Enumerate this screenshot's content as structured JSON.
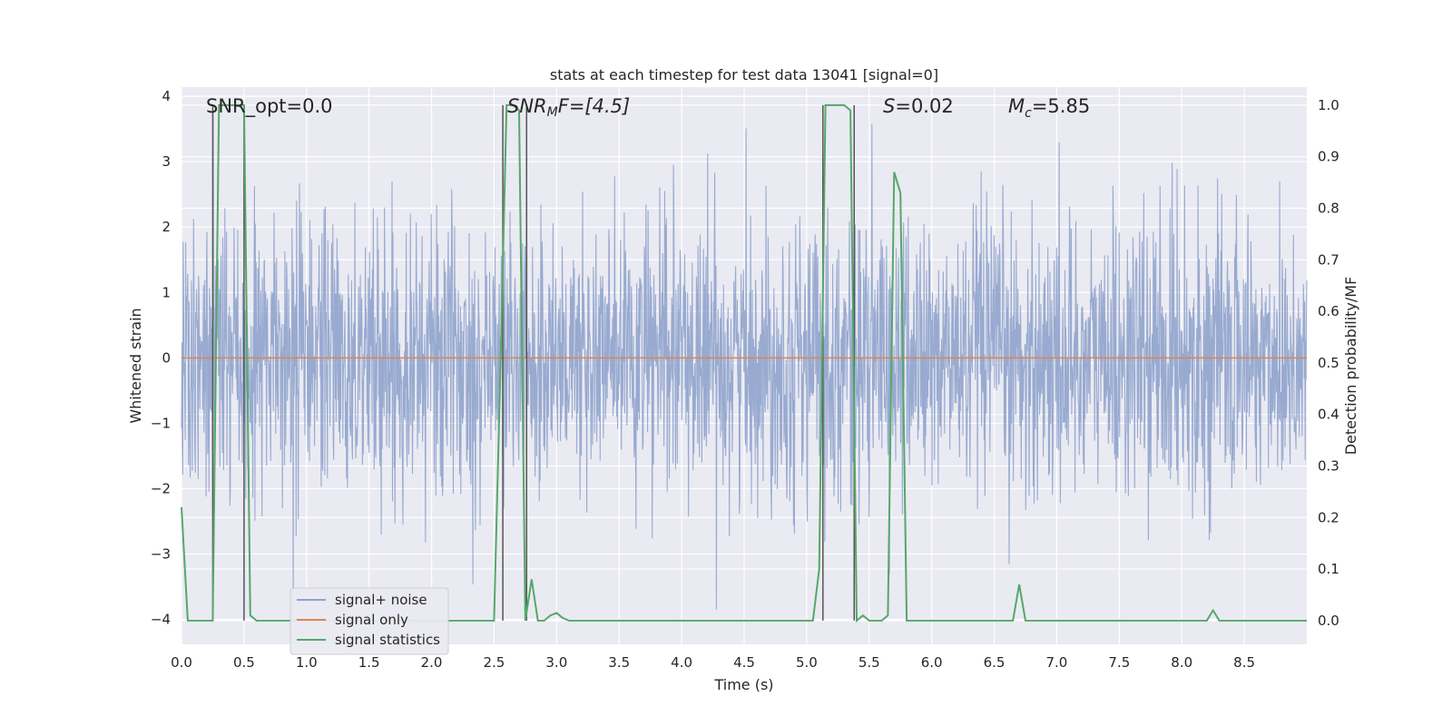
{
  "chart_data": {
    "type": "line",
    "title": "stats at each timestep for test data 13041 [signal=0]",
    "xlabel": "Time (s)",
    "ylabel_left": "Whitened strain",
    "ylabel_right": "Detection probability/MF",
    "xlim": [
      0.0,
      9.0
    ],
    "ylim_left": [
      -4.38,
      4.14
    ],
    "ylim_right": [
      -0.046,
      1.035
    ],
    "x_ticks": [
      "0.0",
      "0.5",
      "1.0",
      "1.5",
      "2.0",
      "2.5",
      "3.0",
      "3.5",
      "4.0",
      "4.5",
      "5.0",
      "5.5",
      "6.0",
      "6.5",
      "7.0",
      "7.5",
      "8.0",
      "8.5"
    ],
    "y_ticks_left": [
      "−4",
      "−3",
      "−2",
      "−1",
      "0",
      "1",
      "2",
      "3",
      "4"
    ],
    "y_ticks_right": [
      "0.0",
      "0.1",
      "0.2",
      "0.3",
      "0.4",
      "0.5",
      "0.6",
      "0.7",
      "0.8",
      "0.9",
      "1.0"
    ],
    "annotations": {
      "snr_opt": "SNR_opt=0.0",
      "snr_mf_sym": "SNR",
      "snr_mf_sub": "M",
      "snr_mf_rest": "F=[4.5]",
      "s_sym": "S",
      "s_rest": "=0.02",
      "mc_sym": "M",
      "mc_sub": "c",
      "mc_rest": "=5.85"
    },
    "vertical_lines": [
      0.25,
      0.5,
      2.57,
      2.76,
      5.13,
      5.38
    ],
    "legend": [
      {
        "label": "signal+ noise",
        "color": "#8fa3cc"
      },
      {
        "label": "signal only",
        "color": "#dd8452"
      },
      {
        "label": "signal statistics",
        "color": "#55a868"
      }
    ],
    "series": [
      {
        "name": "signal+ noise",
        "axis": "left",
        "description": "whitened noise strain, roughly +/-1.7 with spikes to +/-3.5"
      },
      {
        "name": "signal only",
        "axis": "left",
        "values": [
          0.0
        ]
      },
      {
        "name": "signal statistics",
        "axis": "right",
        "x": [
          0.0,
          0.05,
          0.1,
          0.15,
          0.2,
          0.25,
          0.3,
          0.35,
          0.4,
          0.45,
          0.5,
          0.55,
          0.6,
          0.7,
          0.8,
          0.9,
          1.0,
          1.5,
          2.0,
          2.4,
          2.5,
          2.55,
          2.6,
          2.65,
          2.7,
          2.75,
          2.8,
          2.85,
          2.9,
          2.95,
          3.0,
          3.05,
          3.1,
          3.2,
          3.5,
          4.0,
          4.5,
          5.0,
          5.05,
          5.1,
          5.15,
          5.2,
          5.25,
          5.3,
          5.35,
          5.4,
          5.45,
          5.5,
          5.55,
          5.6,
          5.65,
          5.7,
          5.75,
          5.8,
          5.85,
          5.9,
          5.95,
          6.0,
          6.5,
          6.65,
          6.7,
          6.75,
          6.8,
          6.85,
          7.0,
          7.5,
          8.0,
          8.2,
          8.25,
          8.3,
          8.35,
          8.4,
          8.5,
          9.0
        ],
        "values": [
          0.22,
          0.0,
          0.0,
          0.0,
          0.0,
          0.0,
          1.0,
          1.0,
          1.0,
          1.0,
          1.0,
          0.01,
          0.0,
          0.0,
          0.0,
          0.0,
          0.0,
          0.0,
          0.0,
          0.0,
          0.0,
          0.48,
          1.0,
          1.0,
          0.99,
          0.0,
          0.08,
          0.0,
          0.0,
          0.01,
          0.015,
          0.005,
          0.0,
          0.0,
          0.0,
          0.0,
          0.0,
          0.0,
          0.0,
          0.1,
          1.0,
          1.0,
          1.0,
          1.0,
          0.99,
          0.0,
          0.01,
          0.0,
          0.0,
          0.0,
          0.01,
          0.87,
          0.83,
          0.0,
          0.0,
          0.0,
          0.0,
          0.0,
          0.0,
          0.0,
          0.07,
          0.0,
          0.0,
          0.0,
          0.0,
          0.0,
          0.0,
          0.0,
          0.02,
          0.0,
          0.0,
          0.0,
          0.0,
          0.0
        ]
      }
    ]
  }
}
